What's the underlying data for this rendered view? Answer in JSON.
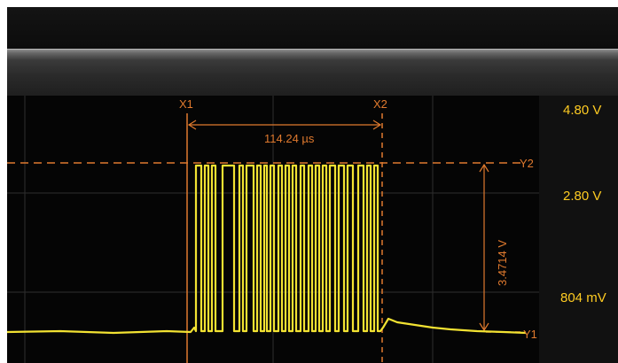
{
  "cursors": {
    "x1_label": "X1",
    "x2_label": "X2",
    "y1_label": "Y1",
    "y2_label": "Y2",
    "delta_time": "114.24 µs",
    "delta_voltage": "3.4714 V"
  },
  "scale": {
    "labels": [
      "4.80 V",
      "2.80 V",
      "804 mV"
    ]
  },
  "colors": {
    "trace": "#f2e232",
    "cursor": "#e07a2e",
    "grid": "#3a3a3a",
    "scale_text": "#ffcc22"
  }
}
